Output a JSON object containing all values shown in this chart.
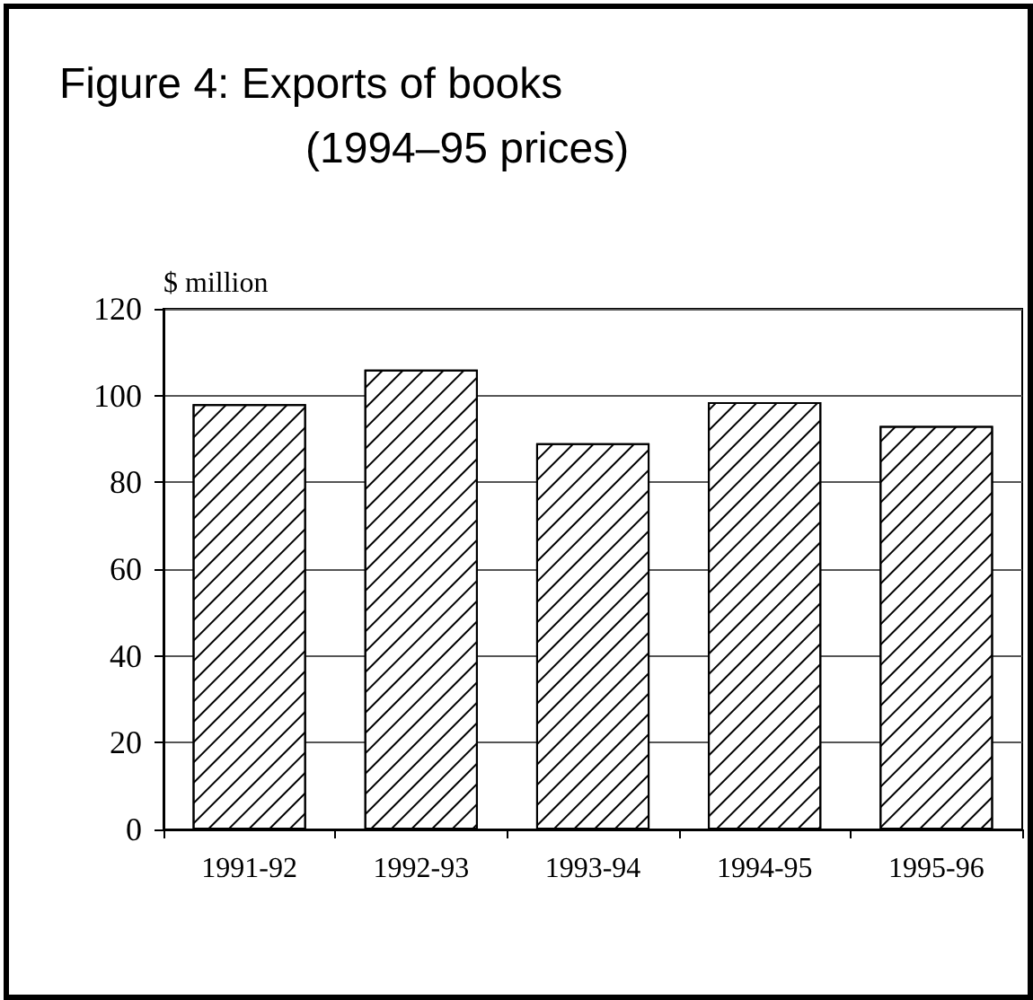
{
  "chart_data": {
    "type": "bar",
    "title": "Figure 4: Exports of books",
    "subtitle": "(1994–95 prices)",
    "ylabel": "$ million",
    "categories": [
      "1991-92",
      "1992-93",
      "1993-94",
      "1994-95",
      "1995-96"
    ],
    "values": [
      98,
      106,
      89,
      98.5,
      93
    ],
    "color": "#ffffff",
    "ylim": [
      0,
      120
    ],
    "yticks": [
      0,
      20,
      40,
      60,
      80,
      100,
      120
    ],
    "grid": "y"
  }
}
